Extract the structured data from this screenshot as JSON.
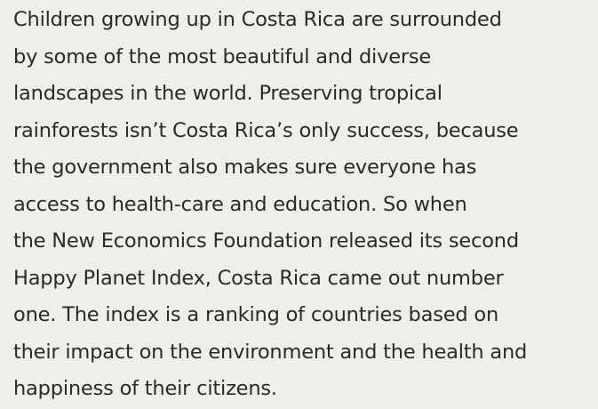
{
  "paragraph": {
    "lines": [
      "Children growing up in Costa Rica are surrounded",
      "by some of the most beautiful and diverse",
      "landscapes in the world. Preserving tropical",
      "rainforests isn’t Costa Rica’s only success, because",
      "the government also makes sure everyone has",
      "access to health-care and education. So when",
      "the New Economics Foundation released its second",
      "Happy Planet Index, Costa Rica came out number",
      "one. The index is a ranking of countries based on",
      "their impact on the environment and the health and",
      "happiness of their citizens."
    ]
  }
}
